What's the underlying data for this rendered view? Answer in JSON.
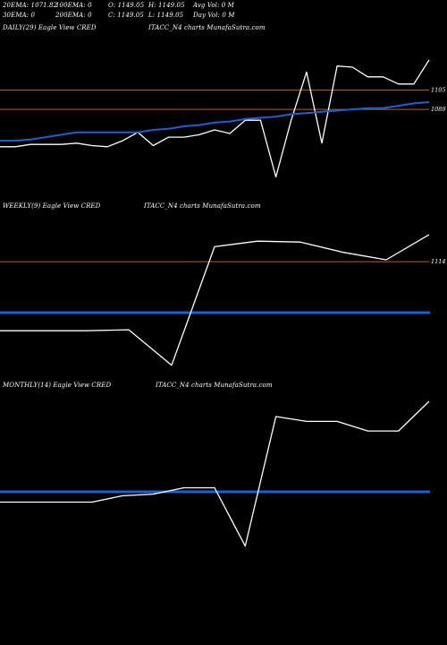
{
  "header": {
    "row1": [
      "20EMA: 1071.82",
      "100EMA: 0",
      "O: 1149.05",
      "H: 1149.05",
      "Avg Vol: 0  M"
    ],
    "row2": [
      "30EMA: 0",
      "200EMA: 0",
      "C: 1149.05",
      "L: 1149.05",
      "Day Vol: 0  M"
    ]
  },
  "panels": {
    "daily": {
      "label": "DAILY(29) Eagle  View  CRED",
      "label2": "ITACC_N4  charts MunafaSutra.com",
      "level_high": "1105",
      "level_low": "1089"
    },
    "weekly": {
      "label": "WEEKLY(9) Eagle  View  CRED",
      "label2": "ITACC_N4  charts MunafaSutra.com",
      "level": "1114"
    },
    "monthly": {
      "label": "MONTHLY(14) Eagle  View  CRED",
      "label2": "ITACC_N4  charts MunafaSutra.com"
    }
  },
  "colors": {
    "background": "#000000",
    "price": "#ffffff",
    "ema": "#1f5fd6",
    "level": "#b4641e"
  },
  "chart_data": [
    {
      "type": "line",
      "name_panel": "daily",
      "series": [
        {
          "values": [
            1058,
            1058,
            1060,
            1060,
            1060,
            1061,
            1059,
            1058,
            1063,
            1070,
            1059,
            1066,
            1066,
            1068,
            1072,
            1069,
            1080,
            1080,
            1033,
            1080,
            1120,
            1061,
            1125,
            1124,
            1116,
            1116,
            1110,
            1110,
            1130
          ]
        },
        {
          "values": [
            1063,
            1063,
            1064,
            1066,
            1068,
            1070,
            1070,
            1070,
            1070,
            1070,
            1072,
            1073,
            1075,
            1076,
            1078,
            1079,
            1081,
            1082,
            1083,
            1085,
            1086,
            1087,
            1088,
            1089,
            1090,
            1090,
            1092,
            1094,
            1095
          ]
        }
      ],
      "levels": [
        1105,
        1089
      ]
    },
    {
      "type": "line",
      "name_panel": "weekly",
      "series": [
        {
          "values": [
            1040,
            1040,
            1040,
            1041,
            1003,
            1130,
            1136,
            1135,
            1124,
            1116,
            1143
          ]
        }
      ],
      "levels": [
        1114
      ]
    },
    {
      "type": "line",
      "name_panel": "monthly",
      "series": [
        {
          "values": [
            1031,
            1031,
            1031,
            1031,
            1039,
            1041,
            1049,
            1049,
            976,
            1138,
            1132,
            1132,
            1120,
            1120,
            1157
          ]
        }
      ]
    }
  ]
}
